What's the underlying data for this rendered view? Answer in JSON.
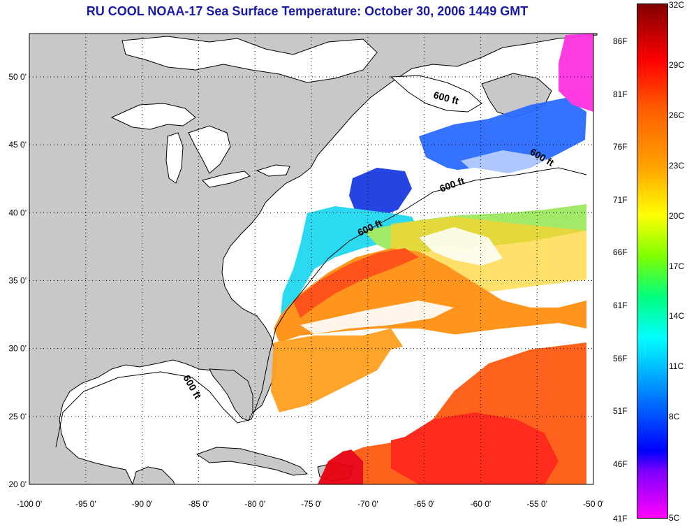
{
  "title": "RU COOL  NOAA-17  Sea Surface Temperature:  October 30, 2006 1449 GMT",
  "map": {
    "lon_ticks": [
      "-100 0'",
      "-95 0'",
      "-90 0'",
      "-85 0'",
      "-80 0'",
      "-75 0'",
      "-70 0'",
      "-65 0'",
      "-60 0'",
      "-55 0'",
      "-50 0'"
    ],
    "lat_ticks": [
      "50 0'",
      "45 0'",
      "40 0'",
      "35 0'",
      "30 0'",
      "25 0'",
      "20 0'"
    ],
    "contour_labels": [
      "600 ft",
      "600 ft",
      "600 ft",
      "600 ft",
      "600 ft"
    ],
    "colors": {
      "land": "#c8c8c8",
      "cloud": "#ffffff",
      "grid": "#000000"
    }
  },
  "colorbar": {
    "celsius": [
      "32C",
      "29C",
      "26C",
      "23C",
      "20C",
      "17C",
      "14C",
      "11C",
      "8C",
      "5C"
    ],
    "fahrenheit": [
      "86F",
      "81F",
      "76F",
      "71F",
      "66F",
      "61F",
      "56F",
      "51F",
      "46F",
      "41F"
    ]
  }
}
